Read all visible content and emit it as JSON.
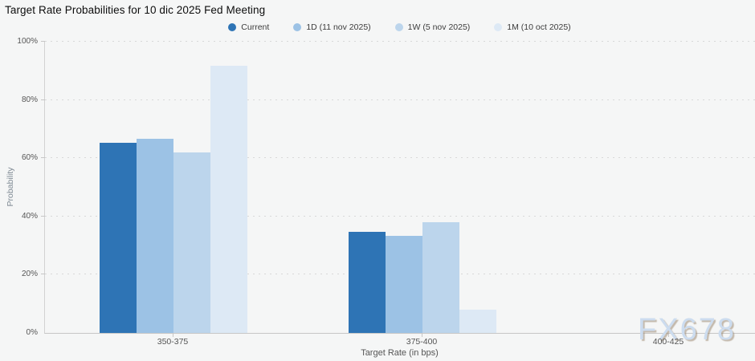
{
  "watermark": "FX678",
  "chart_data": {
    "type": "bar",
    "title": "Target Rate Probabilities for 10 dic 2025 Fed Meeting",
    "xlabel": "Target Rate (in bps)",
    "ylabel": "Probability",
    "categories": [
      "350-375",
      "375-400",
      "400-425"
    ],
    "series": [
      {
        "name": "Current",
        "color": "#2e74b5",
        "values": [
          65.3,
          34.7,
          0
        ]
      },
      {
        "name": "1D (11 nov 2025)",
        "color": "#9cc2e5",
        "values": [
          66.7,
          33.3,
          0
        ]
      },
      {
        "name": "1W (5 nov 2025)",
        "color": "#bcd5ec",
        "values": [
          62.0,
          38.0,
          0
        ]
      },
      {
        "name": "1M (10 oct 2025)",
        "color": "#dde9f5",
        "values": [
          91.8,
          8.0,
          0
        ]
      }
    ],
    "ylim": [
      0,
      100
    ],
    "yticks": [
      0,
      20,
      40,
      60,
      80,
      100
    ],
    "ytick_suffix": "%",
    "grid": "horizontal-dotted",
    "legend_position": "top-center",
    "background": "#f5f6f6"
  }
}
